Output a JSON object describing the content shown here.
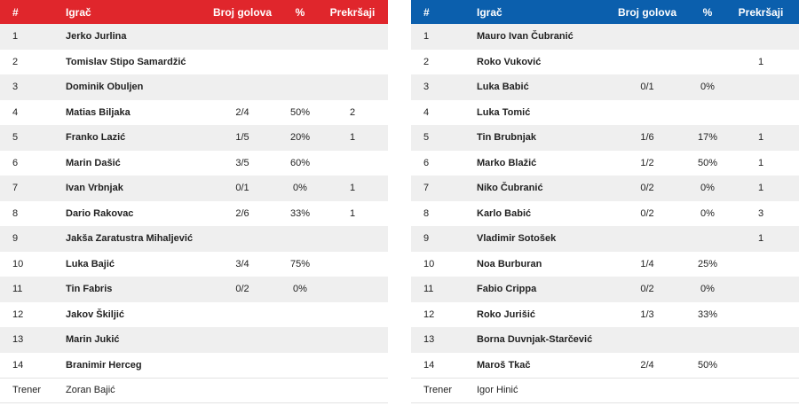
{
  "home": {
    "headers": {
      "num": "#",
      "player": "Igrač",
      "goals": "Broj golova",
      "pct": "%",
      "fouls": "Prekršaji"
    },
    "players": [
      {
        "num": "1",
        "name": "Jerko Jurlina",
        "goals": "",
        "pct": "",
        "fouls": ""
      },
      {
        "num": "2",
        "name": "Tomislav Stipo Samardžić",
        "goals": "",
        "pct": "",
        "fouls": ""
      },
      {
        "num": "3",
        "name": "Dominik Obuljen",
        "goals": "",
        "pct": "",
        "fouls": ""
      },
      {
        "num": "4",
        "name": "Matias Biljaka",
        "goals": "2/4",
        "pct": "50%",
        "fouls": "2"
      },
      {
        "num": "5",
        "name": "Franko Lazić",
        "goals": "1/5",
        "pct": "20%",
        "fouls": "1"
      },
      {
        "num": "6",
        "name": "Marin Dašić",
        "goals": "3/5",
        "pct": "60%",
        "fouls": ""
      },
      {
        "num": "7",
        "name": "Ivan Vrbnjak",
        "goals": "0/1",
        "pct": "0%",
        "fouls": "1"
      },
      {
        "num": "8",
        "name": "Dario Rakovac",
        "goals": "2/6",
        "pct": "33%",
        "fouls": "1"
      },
      {
        "num": "9",
        "name": "Jakša Zaratustra Mihaljević",
        "goals": "",
        "pct": "",
        "fouls": ""
      },
      {
        "num": "10",
        "name": "Luka Bajić",
        "goals": "3/4",
        "pct": "75%",
        "fouls": ""
      },
      {
        "num": "11",
        "name": "Tin Fabris",
        "goals": "0/2",
        "pct": "0%",
        "fouls": ""
      },
      {
        "num": "12",
        "name": "Jakov Škiljić",
        "goals": "",
        "pct": "",
        "fouls": ""
      },
      {
        "num": "13",
        "name": "Marin Jukić",
        "goals": "",
        "pct": "",
        "fouls": ""
      },
      {
        "num": "14",
        "name": "Branimir Herceg",
        "goals": "",
        "pct": "",
        "fouls": ""
      }
    ],
    "coach_label": "Trener",
    "coach_name": "Zoran Bajić"
  },
  "away": {
    "headers": {
      "num": "#",
      "player": "Igrač",
      "goals": "Broj golova",
      "pct": "%",
      "fouls": "Prekršaji"
    },
    "players": [
      {
        "num": "1",
        "name": "Mauro Ivan Čubranić",
        "goals": "",
        "pct": "",
        "fouls": ""
      },
      {
        "num": "2",
        "name": "Roko Vuković",
        "goals": "",
        "pct": "",
        "fouls": "1"
      },
      {
        "num": "3",
        "name": "Luka Babić",
        "goals": "0/1",
        "pct": "0%",
        "fouls": ""
      },
      {
        "num": "4",
        "name": "Luka Tomić",
        "goals": "",
        "pct": "",
        "fouls": ""
      },
      {
        "num": "5",
        "name": "Tin Brubnjak",
        "goals": "1/6",
        "pct": "17%",
        "fouls": "1"
      },
      {
        "num": "6",
        "name": "Marko Blažić",
        "goals": "1/2",
        "pct": "50%",
        "fouls": "1"
      },
      {
        "num": "7",
        "name": "Niko Čubranić",
        "goals": "0/2",
        "pct": "0%",
        "fouls": "1"
      },
      {
        "num": "8",
        "name": "Karlo Babić",
        "goals": "0/2",
        "pct": "0%",
        "fouls": "3"
      },
      {
        "num": "9",
        "name": "Vladimir Sotošek",
        "goals": "",
        "pct": "",
        "fouls": "1"
      },
      {
        "num": "10",
        "name": "Noa Burburan",
        "goals": "1/4",
        "pct": "25%",
        "fouls": ""
      },
      {
        "num": "11",
        "name": "Fabio Crippa",
        "goals": "0/2",
        "pct": "0%",
        "fouls": ""
      },
      {
        "num": "12",
        "name": "Roko Jurišić",
        "goals": "1/3",
        "pct": "33%",
        "fouls": ""
      },
      {
        "num": "13",
        "name": "Borna Duvnjak-Starčević",
        "goals": "",
        "pct": "",
        "fouls": ""
      },
      {
        "num": "14",
        "name": "Maroš Tkač",
        "goals": "2/4",
        "pct": "50%",
        "fouls": ""
      }
    ],
    "coach_label": "Trener",
    "coach_name": "Igor Hinić"
  },
  "colors": {
    "home_header": "#e0262c",
    "away_header": "#0b5fad",
    "row_shade": "#efefef"
  }
}
